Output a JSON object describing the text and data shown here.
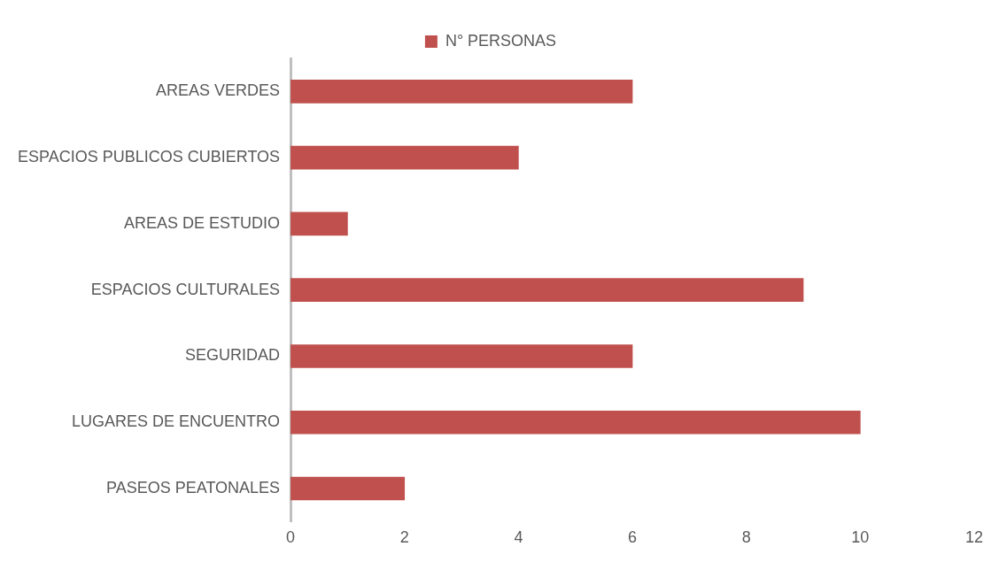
{
  "chart_data": {
    "type": "bar",
    "orientation": "horizontal",
    "categories": [
      "AREAS VERDES",
      "ESPACIOS PUBLICOS CUBIERTOS",
      "AREAS DE ESTUDIO",
      "ESPACIOS CULTURALES",
      "SEGURIDAD",
      "LUGARES DE ENCUENTRO",
      "PASEOS PEATONALES"
    ],
    "series": [
      {
        "name": "N° PERSONAS",
        "color": "#c0504d",
        "values": [
          6,
          4,
          1,
          9,
          6,
          10,
          2
        ]
      }
    ],
    "xlim": [
      0,
      12
    ],
    "xticks": [
      0,
      2,
      4,
      6,
      8,
      10,
      12
    ],
    "grid": false,
    "legend": "top"
  }
}
